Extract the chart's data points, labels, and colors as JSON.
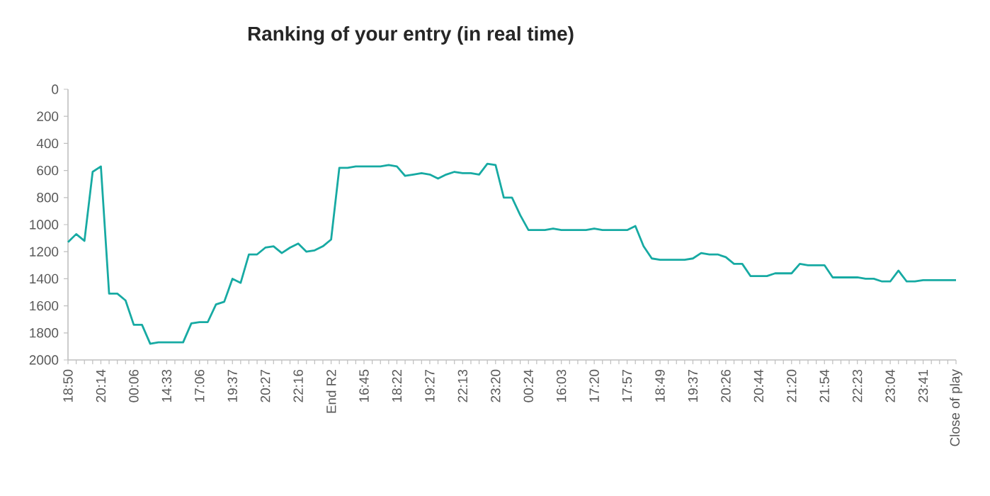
{
  "chart_data": {
    "type": "line",
    "title": "Ranking of your entry (in real time)",
    "categories": [
      "18:50",
      null,
      null,
      null,
      "20:14",
      null,
      null,
      null,
      "00:06",
      null,
      null,
      null,
      "14:33",
      null,
      null,
      null,
      "17:06",
      null,
      null,
      null,
      "19:37",
      null,
      null,
      null,
      "20:27",
      null,
      null,
      null,
      "22:16",
      null,
      null,
      null,
      "End R2",
      null,
      null,
      null,
      "16:45",
      null,
      null,
      null,
      "18:22",
      null,
      null,
      null,
      "19:27",
      null,
      null,
      null,
      "22:13",
      null,
      null,
      null,
      "23:20",
      null,
      null,
      null,
      "00:24",
      null,
      null,
      null,
      "16:03",
      null,
      null,
      null,
      "17:20",
      null,
      null,
      null,
      "17:57",
      null,
      null,
      null,
      "18:49",
      null,
      null,
      null,
      "19:37",
      null,
      null,
      null,
      "20:26",
      null,
      null,
      null,
      "20:44",
      null,
      null,
      null,
      "21:20",
      null,
      null,
      null,
      "21:54",
      null,
      null,
      null,
      "22:23",
      null,
      null,
      null,
      "23:04",
      null,
      null,
      null,
      "23:41",
      null,
      null,
      null,
      "Close of play"
    ],
    "values": [
      1130,
      1070,
      1120,
      610,
      570,
      1510,
      1510,
      1560,
      1740,
      1740,
      1880,
      1870,
      1870,
      1870,
      1870,
      1730,
      1720,
      1720,
      1590,
      1570,
      1400,
      1430,
      1220,
      1220,
      1170,
      1160,
      1210,
      1170,
      1140,
      1200,
      1190,
      1160,
      1110,
      580,
      580,
      570,
      570,
      570,
      570,
      560,
      570,
      640,
      630,
      620,
      630,
      660,
      630,
      610,
      620,
      620,
      630,
      550,
      560,
      800,
      800,
      930,
      1040,
      1040,
      1040,
      1030,
      1040,
      1040,
      1040,
      1040,
      1030,
      1040,
      1040,
      1040,
      1040,
      1010,
      1160,
      1250,
      1260,
      1260,
      1260,
      1260,
      1250,
      1210,
      1220,
      1220,
      1240,
      1290,
      1290,
      1380,
      1380,
      1380,
      1360,
      1360,
      1360,
      1290,
      1300,
      1300,
      1300,
      1390,
      1390,
      1390,
      1390,
      1400,
      1400,
      1420,
      1420,
      1340,
      1420,
      1420,
      1410,
      1410,
      1410,
      1410,
      1410
    ],
    "color": "#17aaa3",
    "ylim": [
      2000,
      0
    ],
    "yticks": [
      0,
      200,
      400,
      600,
      800,
      1000,
      1200,
      1400,
      1600,
      1800,
      2000
    ]
  }
}
